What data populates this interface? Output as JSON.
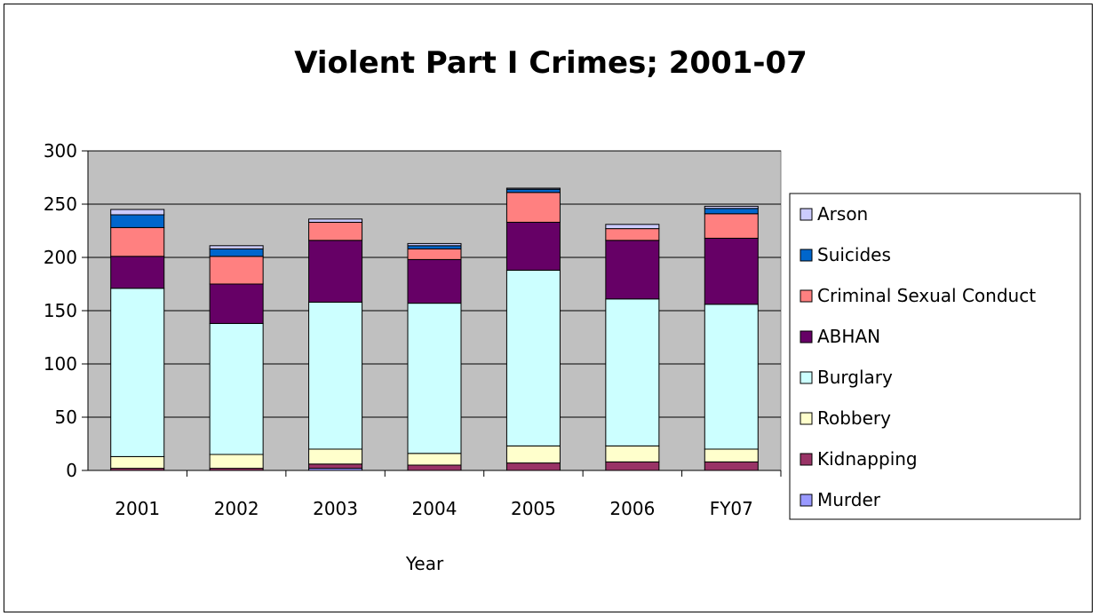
{
  "chart_data": {
    "type": "bar",
    "stacked": true,
    "title": "Violent Part I Crimes; 2001-07",
    "xlabel": "Year",
    "ylabel": "",
    "ylim": [
      0,
      300
    ],
    "yticks": [
      0,
      50,
      100,
      150,
      200,
      250,
      300
    ],
    "grid": true,
    "legend": "right",
    "plot_background": "#c0c0c0",
    "categories": [
      "2001",
      "2002",
      "2003",
      "2004",
      "2005",
      "2006",
      "FY07"
    ],
    "series": [
      {
        "name": "Murder",
        "color": "#9999ff",
        "values": [
          0,
          0,
          2,
          0,
          0,
          0,
          0
        ]
      },
      {
        "name": "Kidnapping",
        "color": "#993366",
        "values": [
          2,
          2,
          4,
          5,
          7,
          8,
          8
        ]
      },
      {
        "name": "Robbery",
        "color": "#ffffcc",
        "values": [
          11,
          13,
          14,
          11,
          16,
          15,
          12
        ]
      },
      {
        "name": "Burglary",
        "color": "#ccffff",
        "values": [
          158,
          123,
          138,
          141,
          165,
          138,
          136
        ]
      },
      {
        "name": "ABHAN",
        "color": "#660066",
        "values": [
          30,
          37,
          58,
          41,
          45,
          55,
          62
        ]
      },
      {
        "name": "Criminal Sexual Conduct",
        "color": "#ff8080",
        "values": [
          27,
          26,
          17,
          10,
          28,
          11,
          23
        ]
      },
      {
        "name": "Suicides",
        "color": "#0066cc",
        "values": [
          12,
          7,
          0,
          3,
          3,
          0,
          5
        ]
      },
      {
        "name": "Arson",
        "color": "#ccccff",
        "values": [
          5,
          3,
          3,
          2,
          1,
          4,
          2
        ]
      }
    ]
  }
}
